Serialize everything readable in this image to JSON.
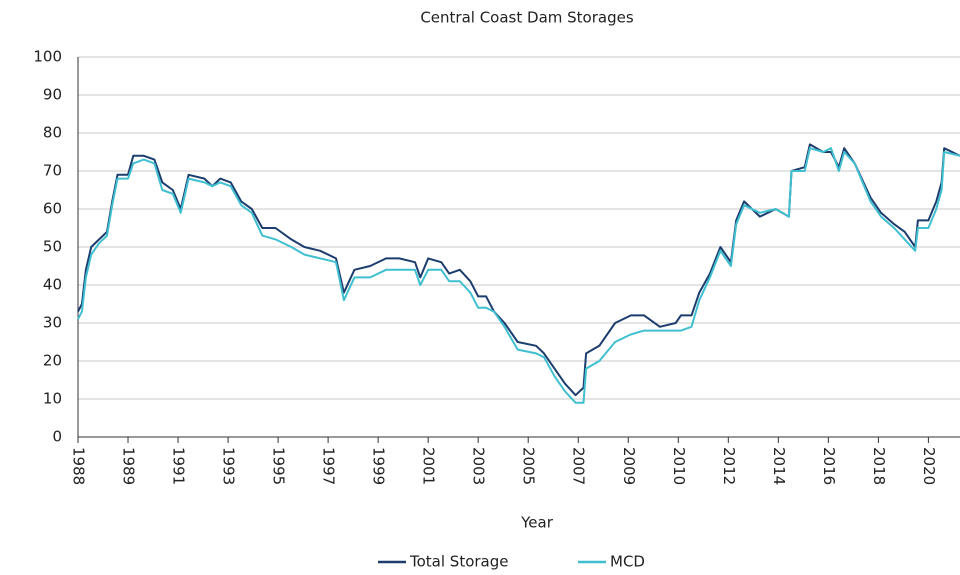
{
  "chart_data": {
    "type": "line",
    "title": "Central Coast Dam Storages",
    "xlabel": "Year",
    "x": [
      1988.0,
      1988.15,
      1988.3,
      1988.5,
      1988.8,
      1989.1,
      1989.3,
      1989.5,
      1989.9,
      1990.1,
      1990.5,
      1990.9,
      1991.2,
      1991.6,
      1991.9,
      1992.2,
      1992.8,
      1993.1,
      1993.4,
      1993.8,
      1994.2,
      1994.6,
      1995.0,
      1995.5,
      1996.1,
      1996.6,
      1997.2,
      1997.8,
      1998.1,
      1998.5,
      1999.1,
      1999.7,
      2000.2,
      2000.8,
      2001.0,
      2001.3,
      2001.8,
      2002.1,
      2002.5,
      2002.9,
      2003.2,
      2003.5,
      2003.8,
      2004.2,
      2004.7,
      2005.4,
      2005.7,
      2006.1,
      2006.5,
      2006.9,
      2007.2,
      2007.3,
      2007.8,
      2008.4,
      2009.0,
      2009.5,
      2010.1,
      2010.7,
      2010.9,
      2011.3,
      2011.6,
      2012.0,
      2012.4,
      2012.8,
      2013.0,
      2013.3,
      2013.9,
      2014.5,
      2015.0,
      2015.1,
      2015.6,
      2015.8,
      2016.3,
      2016.6,
      2016.9,
      2017.1,
      2017.5,
      2018.1,
      2018.5,
      2019.0,
      2019.4,
      2019.8,
      2019.9,
      2020.3,
      2020.6,
      2020.8,
      2020.9,
      2021.5
    ],
    "series": [
      {
        "name": "Total Storage",
        "color": "#1c3d6e",
        "values": [
          33,
          35,
          44,
          50,
          52,
          54,
          62,
          69,
          69,
          74,
          74,
          73,
          67,
          65,
          60,
          69,
          68,
          66,
          68,
          67,
          62,
          60,
          55,
          55,
          52,
          50,
          49,
          47,
          38,
          44,
          45,
          47,
          47,
          46,
          42,
          47,
          46,
          43,
          44,
          41,
          37,
          37,
          33,
          30,
          25,
          24,
          22,
          18,
          14,
          11,
          13,
          22,
          24,
          30,
          32,
          32,
          29,
          30,
          32,
          32,
          38,
          43,
          50,
          46,
          57,
          62,
          58,
          60,
          58,
          70,
          71,
          77,
          75,
          75,
          71,
          76,
          72,
          63,
          59,
          56,
          54,
          50,
          57,
          57,
          62,
          67,
          76,
          74
        ]
      },
      {
        "name": "MCD",
        "color": "#3fbfd0",
        "values": [
          31,
          33,
          42,
          48,
          51,
          53,
          61,
          68,
          68,
          72,
          73,
          72,
          65,
          64,
          59,
          68,
          67,
          66,
          67,
          66,
          61,
          59,
          53,
          52,
          50,
          48,
          47,
          46,
          36,
          42,
          42,
          44,
          44,
          44,
          40,
          44,
          44,
          41,
          41,
          38,
          34,
          34,
          33,
          29,
          23,
          22,
          21,
          16,
          12,
          9,
          9,
          18,
          20,
          25,
          27,
          28,
          28,
          28,
          28,
          29,
          36,
          42,
          49,
          45,
          56,
          61,
          59,
          60,
          58,
          70,
          70,
          76,
          75,
          76,
          70,
          75,
          72,
          62,
          58,
          55,
          52,
          49,
          55,
          55,
          60,
          65,
          75,
          74
        ]
      }
    ],
    "xlim": [
      1988.0,
      2021.5
    ],
    "xticks": [
      1988,
      {
        "value": 1989.9,
        "label": "1989"
      },
      {
        "value": 1991.8,
        "label": "1991"
      },
      {
        "value": 1993.7,
        "label": "1993"
      },
      {
        "value": 1995.6,
        "label": "1995"
      },
      {
        "value": 1997.5,
        "label": "1997"
      },
      {
        "value": 1999.4,
        "label": "1999"
      },
      {
        "value": 2001.3,
        "label": "2001"
      },
      {
        "value": 2003.2,
        "label": "2003"
      },
      {
        "value": 2005.1,
        "label": "2005"
      },
      2007,
      {
        "value": 2008.9,
        "label": "2009"
      },
      {
        "value": 2010.8,
        "label": "2010"
      },
      {
        "value": 2012.7,
        "label": "2012"
      },
      {
        "value": 2014.6,
        "label": "2014"
      },
      {
        "value": 2016.5,
        "label": "2016"
      },
      {
        "value": 2018.4,
        "label": "2018"
      },
      {
        "value": 2020.3,
        "label": "2020"
      }
    ],
    "ylim": [
      0,
      100
    ],
    "yticks": [
      0,
      10,
      20,
      30,
      40,
      50,
      60,
      70,
      80,
      90,
      100
    ],
    "grid": true,
    "legend": "bottom"
  }
}
